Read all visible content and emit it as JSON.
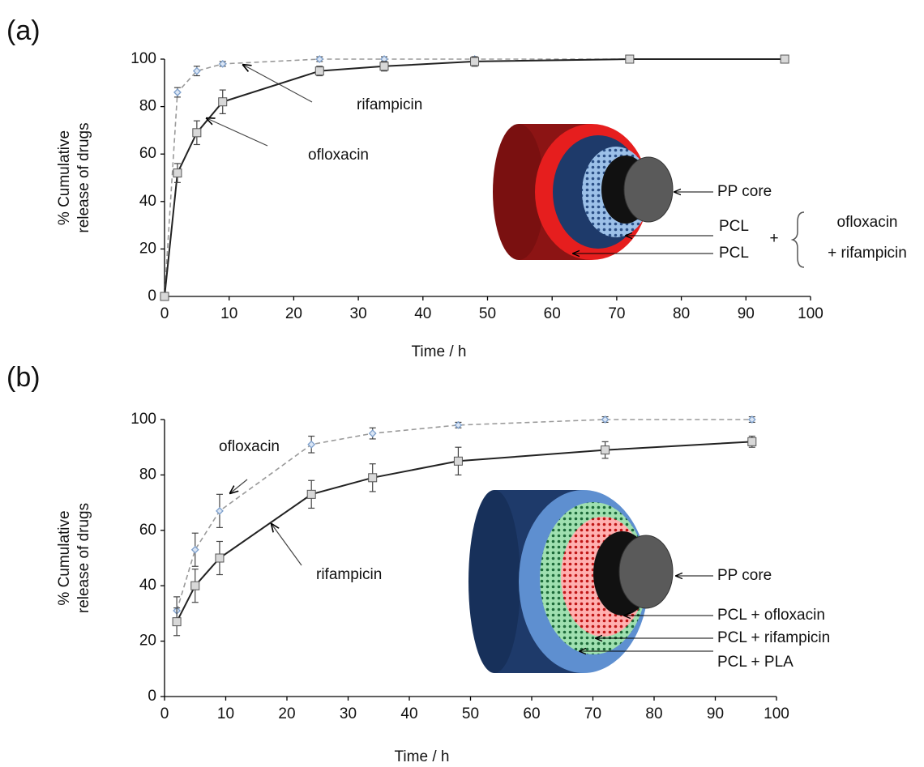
{
  "chart_data": [
    {
      "type": "line",
      "panel_label": "(a)",
      "xlabel": "Time / h",
      "ylabel": [
        "% Cumulative",
        "release of drugs"
      ],
      "x": [
        0,
        2,
        5,
        9,
        24,
        34,
        48,
        72,
        96
      ],
      "xlim": [
        0,
        100
      ],
      "xticks": [
        0,
        10,
        20,
        30,
        40,
        50,
        60,
        70,
        80,
        90,
        100
      ],
      "ylim": [
        0,
        100
      ],
      "yticks": [
        0,
        20,
        40,
        60,
        80,
        100
      ],
      "series": [
        {
          "name": "rifampicin",
          "color": "#9a9a9a",
          "dashed": true,
          "marker": "diamond",
          "marker_color": "#7ea0cc",
          "values": [
            0,
            86,
            95,
            98,
            100,
            100,
            100,
            100,
            100
          ],
          "errors": [
            0,
            2,
            2,
            1,
            1,
            1,
            1,
            1,
            1
          ]
        },
        {
          "name": "ofloxacin",
          "color": "#222222",
          "dashed": false,
          "marker": "square",
          "marker_color": "#d8d8d8",
          "values": [
            0,
            52,
            69,
            82,
            95,
            97,
            99,
            100,
            100
          ],
          "errors": [
            0,
            4,
            5,
            5,
            2,
            2,
            2,
            1,
            1
          ]
        }
      ],
      "inset_labels": [
        "PP core",
        "PCL",
        "PCL",
        "+",
        "ofloxacin",
        "+ rifampicin"
      ]
    },
    {
      "type": "line",
      "panel_label": "(b)",
      "xlabel": "Time / h",
      "ylabel": [
        "% Cumulative",
        "release of drugs"
      ],
      "x": [
        2,
        5,
        9,
        24,
        34,
        48,
        72,
        96
      ],
      "xlim": [
        0,
        100
      ],
      "xticks": [
        0,
        10,
        20,
        30,
        40,
        50,
        60,
        70,
        80,
        90,
        100
      ],
      "ylim": [
        0,
        100
      ],
      "yticks": [
        0,
        20,
        40,
        60,
        80,
        100
      ],
      "series": [
        {
          "name": "ofloxacin",
          "color": "#9a9a9a",
          "dashed": true,
          "marker": "diamond",
          "marker_color": "#7ea0cc",
          "values": [
            31,
            53,
            67,
            91,
            95,
            98,
            100,
            100
          ],
          "errors": [
            5,
            6,
            6,
            3,
            2,
            1,
            1,
            1
          ]
        },
        {
          "name": "rifampicin",
          "color": "#222222",
          "dashed": false,
          "marker": "square",
          "marker_color": "#d8d8d8",
          "values": [
            27,
            40,
            50,
            73,
            79,
            85,
            89,
            92
          ],
          "errors": [
            5,
            6,
            6,
            5,
            5,
            5,
            3,
            2
          ]
        }
      ],
      "inset_labels": [
        "PP core",
        "PCL + ofloxacin",
        "PCL + rifampicin",
        "PCL + PLA"
      ]
    }
  ]
}
